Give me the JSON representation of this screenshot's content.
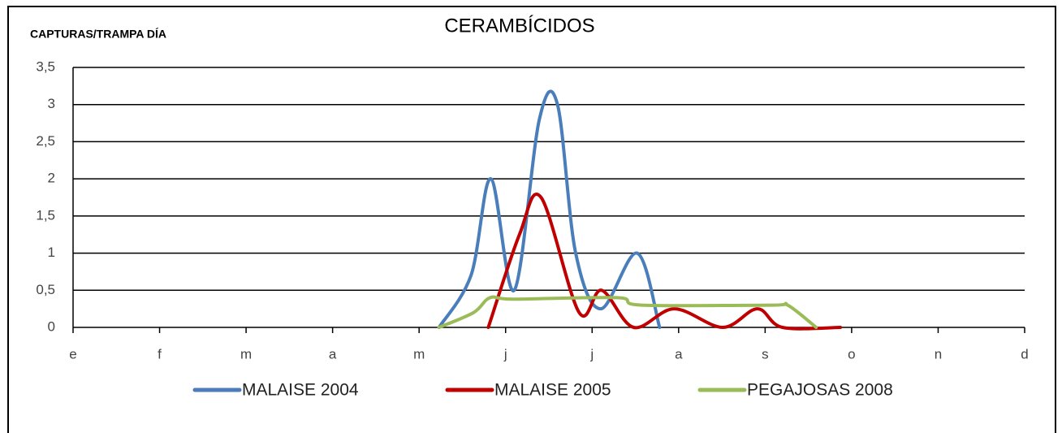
{
  "chart_data": {
    "type": "line",
    "title": "CERAMBÍCIDOS",
    "y_label": "CAPTURAS/TRAMPA DÍA",
    "xlim": [
      0,
      11
    ],
    "xticks": [
      {
        "value": 0,
        "label": "e"
      },
      {
        "value": 1,
        "label": "f"
      },
      {
        "value": 2,
        "label": "m"
      },
      {
        "value": 3,
        "label": "a"
      },
      {
        "value": 4,
        "label": "m"
      },
      {
        "value": 5,
        "label": "j"
      },
      {
        "value": 6,
        "label": "j"
      },
      {
        "value": 7,
        "label": "a"
      },
      {
        "value": 8,
        "label": "s"
      },
      {
        "value": 9,
        "label": "o"
      },
      {
        "value": 10,
        "label": "n"
      },
      {
        "value": 11,
        "label": "d"
      }
    ],
    "ylim": [
      0,
      3.5
    ],
    "yticks": [
      0,
      {
        "value": 0.5,
        "label": "0,5"
      },
      1,
      {
        "value": 1.5,
        "label": "1,5"
      },
      2,
      {
        "value": 2.5,
        "label": "2,5"
      },
      3,
      {
        "value": 3.5,
        "label": "3,5"
      }
    ],
    "grid": true,
    "legend": "bottom",
    "series": [
      {
        "name": "MALAISE 2004",
        "color": "#4a7ebb",
        "x": [
          4.23,
          4.6,
          4.83,
          5.1,
          5.39,
          5.6,
          5.81,
          6.1,
          6.52,
          6.78
        ],
        "values": [
          0,
          0.7,
          2,
          0.5,
          2.8,
          3,
          1,
          0.25,
          1,
          0
        ]
      },
      {
        "name": "MALAISE 2005",
        "color": "#c00000",
        "x": [
          4.8,
          5.16,
          5.41,
          5.85,
          6.11,
          6.48,
          6.95,
          7.51,
          7.91,
          8.2,
          8.87
        ],
        "values": [
          0,
          1.25,
          1.75,
          0.2,
          0.5,
          0,
          0.25,
          0,
          0.25,
          0,
          0
        ]
      },
      {
        "name": "PEGAJOSAS 2008",
        "color": "#9bbb59",
        "x": [
          4.23,
          4.63,
          4.82,
          5.09,
          6.29,
          6.57,
          8.08,
          8.26,
          8.59
        ],
        "values": [
          0,
          0.2,
          0.4,
          0.38,
          0.4,
          0.3,
          0.3,
          0.3,
          0
        ]
      }
    ]
  }
}
